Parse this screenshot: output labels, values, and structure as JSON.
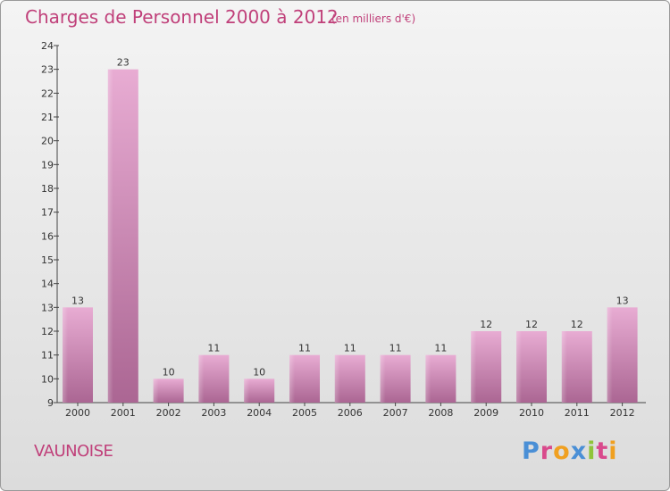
{
  "header": {
    "title": "Charges de Personnel 2000 à 2012",
    "subtitle": "(en milliers d'€)"
  },
  "footer": {
    "commune": "VAUNOISE",
    "logo_text": "Proxiti"
  },
  "colors": {
    "accent": "#c0407a",
    "bar_top": "#e7a8d0",
    "bar_bottom": "#b06a98",
    "logo": [
      "#4a8fd6",
      "#d94a8c",
      "#f0a020",
      "#4a8fd6",
      "#8fc43a",
      "#d94a8c",
      "#f0a020"
    ]
  },
  "chart_data": {
    "type": "bar",
    "title": "Charges de Personnel 2000 à 2012",
    "subtitle": "(en milliers d'€)",
    "categories": [
      "2000",
      "2001",
      "2002",
      "2003",
      "2004",
      "2005",
      "2006",
      "2007",
      "2008",
      "2009",
      "2010",
      "2011",
      "2012"
    ],
    "values": [
      13,
      23,
      10,
      11,
      10,
      11,
      11,
      11,
      11,
      12,
      12,
      12,
      13
    ],
    "ylim": [
      9,
      24
    ],
    "yticks": [
      9,
      10,
      11,
      12,
      13,
      14,
      15,
      16,
      17,
      18,
      19,
      20,
      21,
      22,
      23,
      24
    ],
    "grid": false,
    "legend": "none"
  }
}
